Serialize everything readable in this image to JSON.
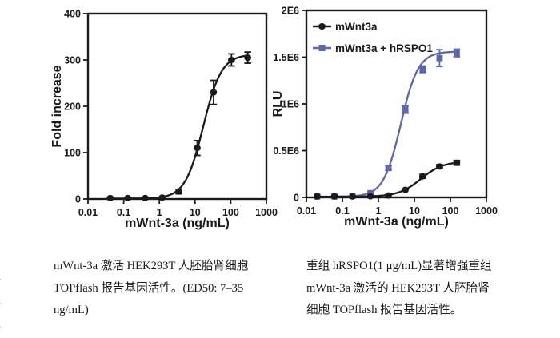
{
  "page": {
    "background": "#ffffff",
    "ink_color": "#1a1a1a",
    "accent_blue": "#5a68b2"
  },
  "chart_data": [
    {
      "type": "line",
      "name": "left-dose-response-chart",
      "title": "",
      "xlabel": "mWnt-3a (ng/mL)",
      "ylabel": "Fold increase",
      "xscale": "log",
      "xlim": [
        0.01,
        1000
      ],
      "ylim": [
        0,
        400
      ],
      "xticks": [
        0.01,
        0.1,
        1,
        10,
        100,
        1000
      ],
      "xtick_labels": [
        "0.01",
        "0.1",
        "1",
        "10",
        "100",
        "1000"
      ],
      "yticks": [
        0,
        100,
        200,
        300,
        400
      ],
      "ytick_labels": [
        "0",
        "100",
        "200",
        "300",
        "400"
      ],
      "grid": false,
      "legend": null,
      "ed50_note": "ED50: 7-35 ng/mL",
      "series": [
        {
          "name": "mWnt-3a",
          "color": "#1a1a1a",
          "marker": "circle",
          "x": [
            0.042,
            0.13,
            0.4,
            1.2,
            3.5,
            11.5,
            33,
            105,
            300
          ],
          "y": [
            2,
            2,
            2,
            3,
            16,
            110,
            230,
            300,
            305
          ],
          "yerr": [
            0,
            0,
            0,
            0,
            5,
            16,
            26,
            13,
            12
          ],
          "fit": {
            "bottom": 1,
            "top": 312,
            "ec50": 17,
            "hill": 1.7
          }
        }
      ]
    },
    {
      "type": "line",
      "name": "right-dose-response-chart",
      "title": "",
      "xlabel": "mWnt-3a (ng/mL)",
      "ylabel": "RLU",
      "xscale": "log",
      "xlim": [
        0.01,
        1000
      ],
      "ylim": [
        0,
        2000000
      ],
      "xticks": [
        0.01,
        0.1,
        1,
        10,
        100,
        1000
      ],
      "xtick_labels": [
        "0.01",
        "0.1",
        "1",
        "10",
        "100",
        "1000"
      ],
      "yticks": [
        0,
        500000,
        1000000,
        1500000,
        2000000
      ],
      "ytick_labels": [
        "0",
        "0.5E6",
        "1E6",
        "1.5E6",
        "2E6"
      ],
      "grid": false,
      "legend": {
        "position": "top-left"
      },
      "series": [
        {
          "name": "mWnt3a",
          "color": "#1a1a1a",
          "marker": "circle",
          "x": [
            0.02,
            0.06,
            0.19,
            0.6,
            1.9,
            5.6,
            17,
            50,
            150
          ],
          "y": [
            10000,
            10000,
            10000,
            12000,
            20000,
            80000,
            225000,
            330000,
            370000
          ],
          "yerr": [
            0,
            0,
            0,
            0,
            0,
            0,
            20000,
            20000,
            25000
          ],
          "fit": {
            "bottom": 8000,
            "top": 385000,
            "ec50": 15,
            "hill": 1.4
          }
        },
        {
          "name": "mWnt3a + hRSPO1",
          "color": "#5a68b2",
          "marker": "square",
          "x": [
            0.02,
            0.06,
            0.19,
            0.6,
            1.9,
            5.6,
            17,
            50,
            150
          ],
          "y": [
            10000,
            10000,
            15000,
            45000,
            315000,
            940000,
            1370000,
            1490000,
            1545000
          ],
          "yerr": [
            0,
            0,
            0,
            0,
            25000,
            40000,
            35000,
            90000,
            40000
          ],
          "fit": {
            "bottom": 8000,
            "top": 1560000,
            "ec50": 4.2,
            "hill": 1.8
          }
        }
      ]
    }
  ],
  "captions": [
    {
      "lines": [
        "mWnt-3a 激活 HEK293T 人胚胎肾细胞",
        "TOPflash 报告基因活性。(ED50: 7–35",
        "ng/mL)"
      ]
    },
    {
      "lines": [
        "重组 hRSPO1(1 μg/mL)显著增强重组",
        "mWnt-3a 激活的 HEK293T 人胚胎肾",
        "细胞 TOPflash 报告基因活性。"
      ]
    }
  ],
  "edge_fragments": [
    ",",
    ",",
    ","
  ]
}
